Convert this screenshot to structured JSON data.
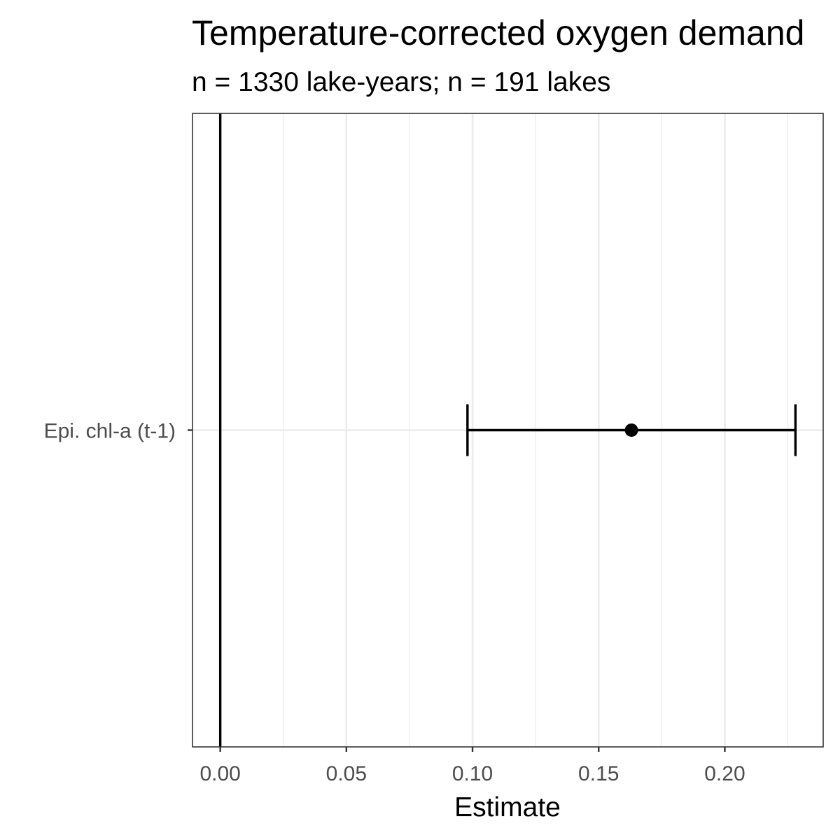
{
  "chart_data": {
    "type": "errorbar",
    "title": "Temperature-corrected oxygen demand",
    "subtitle": "n = 1330 lake-years; n = 191 lakes",
    "xlabel": "Estimate",
    "ylabel": "",
    "xlim": [
      -0.011,
      0.239
    ],
    "x_ticks": [
      0.0,
      0.05,
      0.1,
      0.15,
      0.2
    ],
    "x_tick_labels": [
      "0.00",
      "0.05",
      "0.10",
      "0.15",
      "0.20"
    ],
    "grid": true,
    "reference_line": 0,
    "categories": [
      "Epi. chl-a (t-1)"
    ],
    "points": [
      {
        "term": "Epi. chl-a (t-1)",
        "estimate": 0.163,
        "conf_low": 0.098,
        "conf_high": 0.228
      }
    ],
    "colors": {
      "point": "#000000",
      "errorbar": "#000000",
      "grid": "#ebebeb",
      "panel_border": "#333333"
    }
  }
}
